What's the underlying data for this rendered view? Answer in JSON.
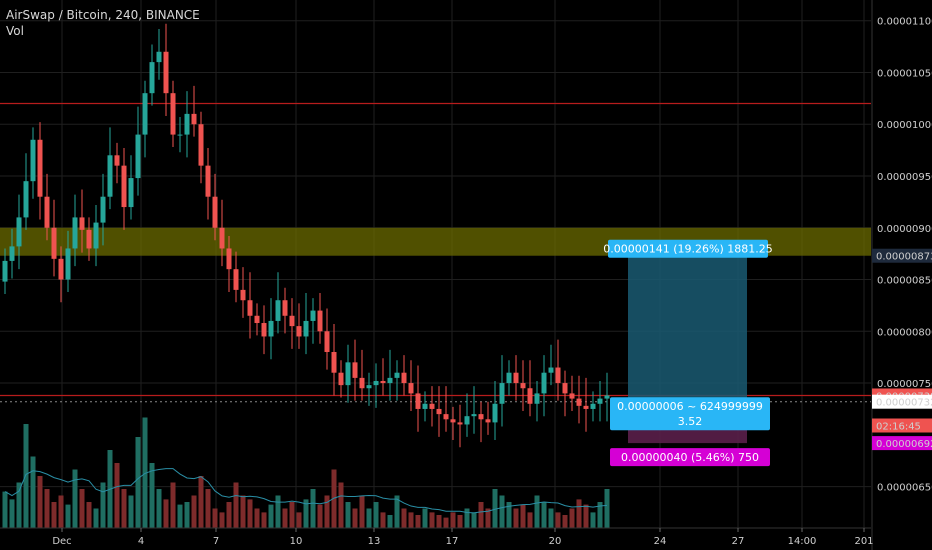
{
  "chart": {
    "title": "AirSwap / Bitcoin, 240, BINANCE",
    "volume_label": "Vol"
  },
  "chart_data": {
    "type": "candlestick",
    "pair": "AirSwap / Bitcoin",
    "interval": "240",
    "exchange": "BINANCE",
    "ylim": [
      6.1e-06,
      1.12e-05
    ],
    "y_ticks": [
      "0.00001100",
      "0.00001050",
      "0.00001000",
      "0.00000950",
      "0.00000900",
      "0.00000850",
      "0.00000800",
      "0.00000750",
      "0.00000650"
    ],
    "x_ticks": [
      "Dec",
      "4",
      "7",
      "10",
      "13",
      "17",
      "20",
      "24",
      "27",
      "14:00",
      "201"
    ],
    "price_tags": {
      "zone_top": "0.00000873",
      "last_price": "0.00000738",
      "countdown": "02:16:45",
      "cursor": "0.00000732",
      "stop": "0.00000692"
    },
    "horizontal_lines": [
      {
        "price": 1.02e-05,
        "color": "#b71c1c"
      },
      {
        "price": 7.38e-06,
        "color": "#b71c1c"
      }
    ],
    "zone": {
      "from": 8.73e-06,
      "to": 9e-06,
      "color": "#6b6b00"
    },
    "position": {
      "entry": 7.32e-06,
      "target": 8.73e-06,
      "stop": 6.92e-06,
      "target_label": "0.00000141 (19.26%) 1881.25",
      "entry_label_line1": "0.00000006 ~ 624999999",
      "entry_label_line2": "3.52",
      "stop_label": "0.00000040 (5.46%) 750"
    },
    "close": [
      8.68e-06,
      8.82e-06,
      9.1e-06,
      9.45e-06,
      9.85e-06,
      9.3e-06,
      9e-06,
      8.7e-06,
      8.5e-06,
      8.8e-06,
      9.1e-06,
      8.98e-06,
      8.8e-06,
      9.05e-06,
      9.3e-06,
      9.7e-06,
      9.6e-06,
      9.2e-06,
      9.48e-06,
      9.9e-06,
      1.03e-05,
      1.06e-05,
      1.07e-05,
      1.03e-05,
      9.9e-06,
      9.9e-06,
      1.01e-05,
      1e-05,
      9.6e-06,
      9.3e-06,
      9e-06,
      8.8e-06,
      8.6e-06,
      8.4e-06,
      8.3e-06,
      8.15e-06,
      8.08e-06,
      7.95e-06,
      8.1e-06,
      8.3e-06,
      8.15e-06,
      8.05e-06,
      7.95e-06,
      8.1e-06,
      8.2e-06,
      8e-06,
      7.8e-06,
      7.6e-06,
      7.48e-06,
      7.7e-06,
      7.55e-06,
      7.45e-06,
      7.48e-06,
      7.52e-06,
      7.5e-06,
      7.55e-06,
      7.6e-06,
      7.5e-06,
      7.4e-06,
      7.25e-06,
      7.3e-06,
      7.25e-06,
      7.2e-06,
      7.15e-06,
      7.12e-06,
      7.1e-06,
      7.18e-06,
      7.2e-06,
      7.15e-06,
      7.12e-06,
      7.3e-06,
      7.5e-06,
      7.6e-06,
      7.5e-06,
      7.45e-06,
      7.3e-06,
      7.4e-06,
      7.6e-06,
      7.65e-06,
      7.5e-06,
      7.4e-06,
      7.35e-06,
      7.28e-06,
      7.25e-06,
      7.3e-06,
      7.35e-06,
      7.38e-06
    ],
    "volume_max_note": "relative volumes 0-1",
    "volume": [
      0.28,
      0.22,
      0.35,
      0.8,
      0.55,
      0.4,
      0.3,
      0.2,
      0.25,
      0.18,
      0.45,
      0.3,
      0.2,
      0.15,
      0.35,
      0.6,
      0.5,
      0.3,
      0.25,
      0.7,
      0.85,
      0.5,
      0.3,
      0.22,
      0.35,
      0.18,
      0.2,
      0.25,
      0.4,
      0.3,
      0.15,
      0.12,
      0.2,
      0.35,
      0.25,
      0.22,
      0.15,
      0.12,
      0.18,
      0.25,
      0.15,
      0.2,
      0.12,
      0.22,
      0.3,
      0.18,
      0.25,
      0.45,
      0.35,
      0.2,
      0.15,
      0.25,
      0.15,
      0.2,
      0.12,
      0.1,
      0.25,
      0.15,
      0.12,
      0.1,
      0.15,
      0.12,
      0.1,
      0.08,
      0.12,
      0.1,
      0.15,
      0.12,
      0.2,
      0.15,
      0.3,
      0.25,
      0.2,
      0.15,
      0.18,
      0.12,
      0.25,
      0.2,
      0.15,
      0.12,
      0.1,
      0.15,
      0.22,
      0.18,
      0.12,
      0.2,
      0.3
    ],
    "colors": {
      "up": "#26a69a",
      "down": "#ef5350",
      "vol_up": "#1f6e62",
      "vol_down": "#7e2b2b",
      "grid": "#1f1f1f",
      "target_zone": "#1a5a72",
      "stop_zone": "#5a1f4a",
      "tag_target": "#29b6f6",
      "tag_stop": "#d500d5",
      "tag_red": "#ef5350",
      "vol_ma": "#2a8fa6"
    }
  }
}
